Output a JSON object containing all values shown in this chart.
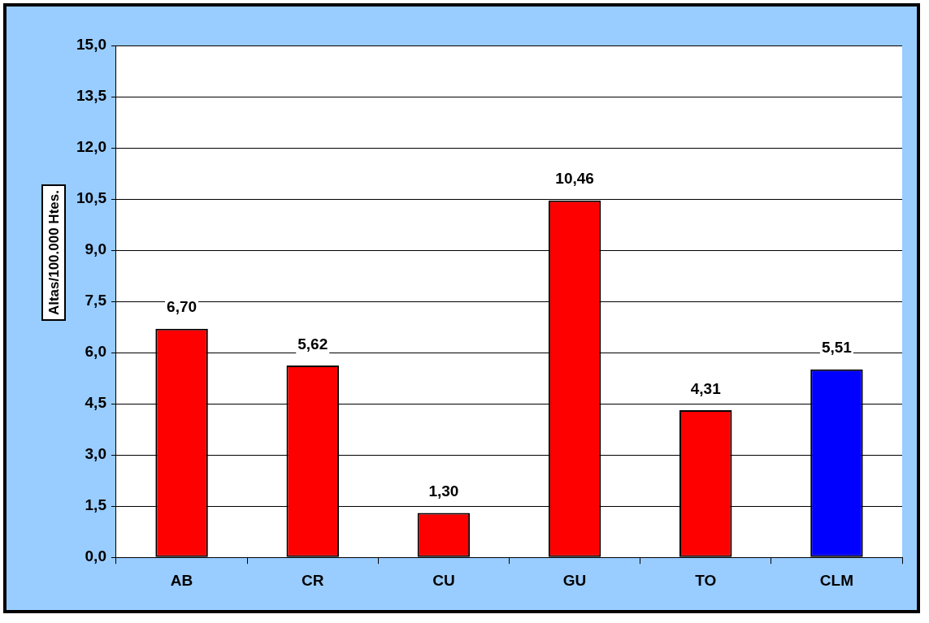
{
  "chart_data": {
    "type": "bar",
    "ylabel": "Altas/100.000 Htes.",
    "categories": [
      "AB",
      "CR",
      "CU",
      "GU",
      "TO",
      "CLM"
    ],
    "values": [
      6.7,
      5.62,
      1.3,
      10.46,
      4.31,
      5.51
    ],
    "colors": [
      "#ff0000",
      "#ff0000",
      "#ff0000",
      "#ff0000",
      "#ff0000",
      "#0000ff"
    ],
    "value_labels": [
      "6,70",
      "5,62",
      "1,30",
      "10,46",
      "4,31",
      "5,51"
    ],
    "ylim": [
      0,
      15
    ],
    "yticks": [
      {
        "value": 0,
        "label": "0,0"
      },
      {
        "value": 1.5,
        "label": "1,5"
      },
      {
        "value": 3,
        "label": "3,0"
      },
      {
        "value": 4.5,
        "label": "4,5"
      },
      {
        "value": 6,
        "label": "6,0"
      },
      {
        "value": 7.5,
        "label": "7,5"
      },
      {
        "value": 9,
        "label": "9,0"
      },
      {
        "value": 10.5,
        "label": "10,5"
      },
      {
        "value": 12,
        "label": "12,0"
      },
      {
        "value": 13.5,
        "label": "13,5"
      },
      {
        "value": 15,
        "label": "15,0"
      }
    ],
    "grid": "y",
    "legend": false
  }
}
